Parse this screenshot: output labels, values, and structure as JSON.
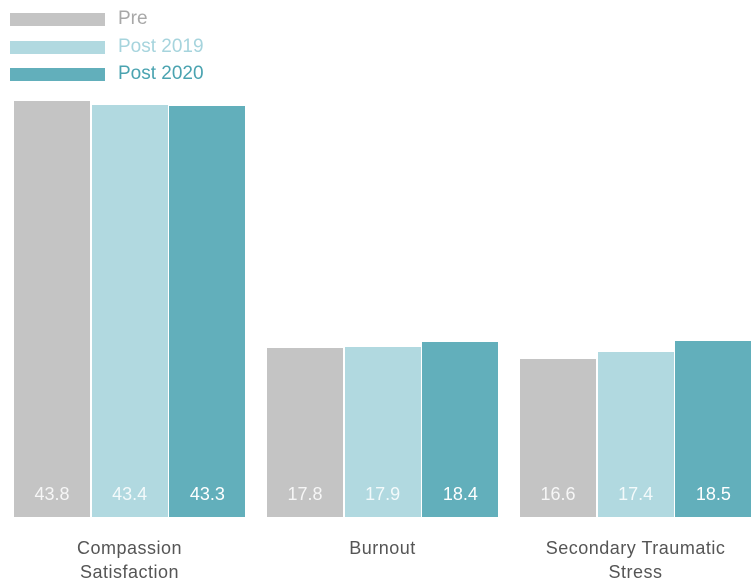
{
  "chart_data": {
    "type": "bar",
    "categories": [
      "Compassion Satisfaction",
      "Burnout",
      "Secondary Traumatic Stress"
    ],
    "series": [
      {
        "name": "Pre",
        "color": "#c4c4c4",
        "values": [
          43.8,
          17.8,
          16.6
        ]
      },
      {
        "name": "Post 2019",
        "color": "#b1d9e0",
        "values": [
          43.4,
          17.9,
          17.4
        ]
      },
      {
        "name": "Post 2020",
        "color": "#62afbb",
        "values": [
          43.3,
          18.4,
          18.5
        ]
      }
    ],
    "legend": "top-left"
  }
}
